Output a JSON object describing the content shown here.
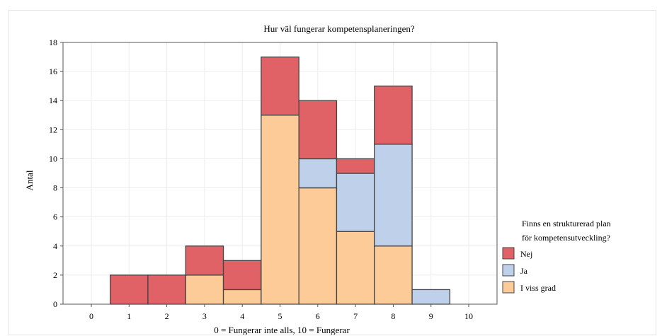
{
  "chart_data": {
    "type": "bar",
    "stacked": true,
    "title": "Hur väl fungerar kompetensplaneringen?",
    "xlabel": "0 = Fungerar inte alls, 10 = Fungerar",
    "ylabel": "Antal",
    "categories": [
      "0",
      "1",
      "2",
      "3",
      "4",
      "5",
      "6",
      "7",
      "8",
      "9",
      "10"
    ],
    "ylim": [
      0,
      18
    ],
    "yticks": [
      0,
      2,
      4,
      6,
      8,
      10,
      12,
      14,
      16,
      18
    ],
    "grid": true,
    "legend_title": [
      "Finns en strukturerad plan",
      "för kompetensutveckling?"
    ],
    "legend_position": "bottom-right",
    "series": [
      {
        "name": "I viss grad",
        "color": "#fdcb97",
        "values": [
          0,
          0,
          0,
          2,
          1,
          13,
          8,
          5,
          4,
          0,
          0
        ]
      },
      {
        "name": "Ja",
        "color": "#bed0ea",
        "values": [
          0,
          0,
          0,
          0,
          0,
          0,
          2,
          4,
          7,
          1,
          0
        ]
      },
      {
        "name": "Nej",
        "color": "#e06266",
        "values": [
          0,
          2,
          2,
          2,
          2,
          4,
          4,
          1,
          4,
          0,
          0
        ]
      }
    ],
    "legend_order": [
      "Nej",
      "Ja",
      "I viss grad"
    ]
  }
}
